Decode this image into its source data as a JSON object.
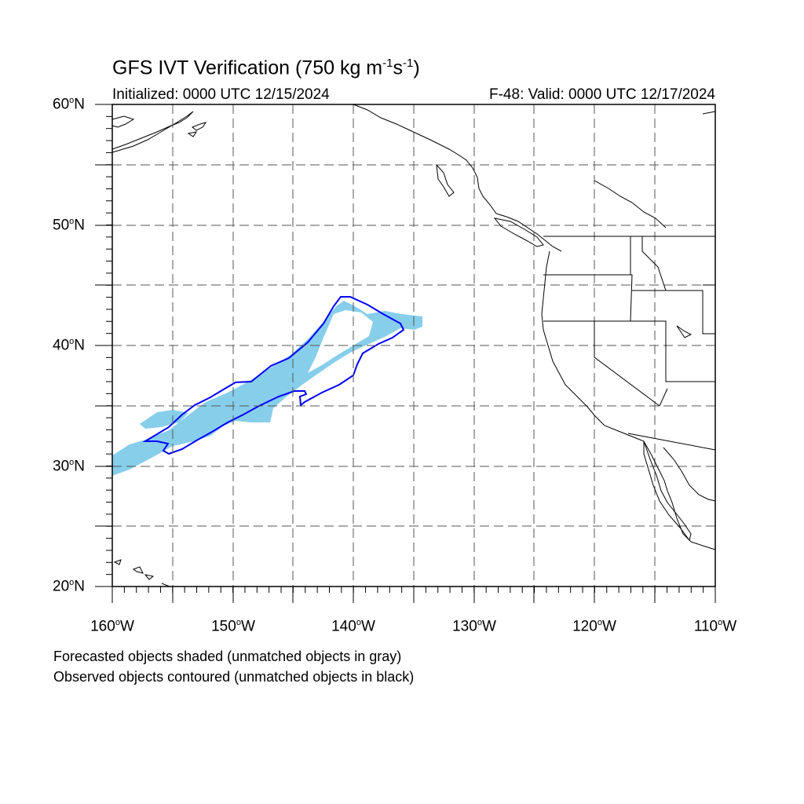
{
  "title": {
    "main": "GFS IVT Verification (750 kg m",
    "exp1": "-1",
    "mid": "s",
    "exp2": "-1",
    "end": ")"
  },
  "initialized": "Initialized: 0000 UTC 12/15/2024",
  "valid": "F-48: Valid: 0000 UTC 12/17/2024",
  "lat_labels": [
    {
      "num": "60",
      "suffix": "N"
    },
    {
      "num": "50",
      "suffix": "N"
    },
    {
      "num": "40",
      "suffix": "N"
    },
    {
      "num": "30",
      "suffix": "N"
    },
    {
      "num": "20",
      "suffix": "N"
    }
  ],
  "lon_labels": [
    {
      "num": "160",
      "suffix": "W"
    },
    {
      "num": "150",
      "suffix": "W"
    },
    {
      "num": "140",
      "suffix": "W"
    },
    {
      "num": "130",
      "suffix": "W"
    },
    {
      "num": "120",
      "suffix": "W"
    },
    {
      "num": "110",
      "suffix": "W"
    }
  ],
  "degree_symbol": "o",
  "footnote_1": "Forecasted objects shaded (unmatched objects in gray)",
  "footnote_2": "Observed objects contoured (unmatched objects in black)",
  "colors": {
    "forecast_fill": "#87ceeb",
    "observed_contour": "#0000ff",
    "coastline": "#000000",
    "grid": "#555555"
  },
  "map_extent": {
    "lon_min": -160,
    "lon_max": -110,
    "lat_min": 20,
    "lat_max": 60
  }
}
